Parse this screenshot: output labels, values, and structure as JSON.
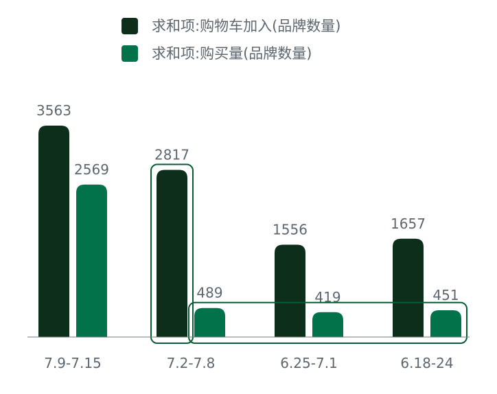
{
  "chart_data": {
    "type": "bar",
    "categories": [
      "7.9-7.15",
      "7.2-7.8",
      "6.25-7.1",
      "6.18-24"
    ],
    "series": [
      {
        "name": "求和项:购物车加入(品牌数量)",
        "values": [
          3563,
          2817,
          1556,
          1657
        ],
        "color": "#0d2e1b"
      },
      {
        "name": "求和项:购买量(品牌数量)",
        "values": [
          2569,
          489,
          419,
          451
        ],
        "color": "#02724a"
      }
    ],
    "ylim": [
      0,
      3563
    ],
    "grid": false,
    "legend_position": "top-center",
    "data_labels": true,
    "highlight_boxes": [
      {
        "series": [
          0
        ],
        "categories": [
          1
        ]
      },
      {
        "series": [
          1
        ],
        "categories": [
          1,
          2,
          3
        ]
      }
    ],
    "label_color": "#5c6770",
    "axis_color": "#6f7a7a",
    "highlight_color": "#0a5a35"
  }
}
